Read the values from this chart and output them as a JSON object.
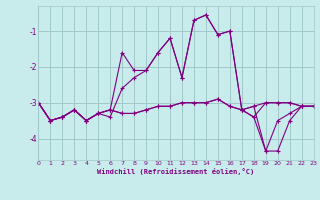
{
  "xlabel": "Windchill (Refroidissement éolien,°C)",
  "bg_color": "#c8ecec",
  "grid_color": "#a0c8c8",
  "line_color": "#800080",
  "xmin": 0,
  "xmax": 23,
  "ymin": -4.6,
  "ymax": -0.3,
  "yticks": [
    -4,
    -3,
    -2,
    -1
  ],
  "xticks": [
    0,
    1,
    2,
    3,
    4,
    5,
    6,
    7,
    8,
    9,
    10,
    11,
    12,
    13,
    14,
    15,
    16,
    17,
    18,
    19,
    20,
    21,
    22,
    23
  ],
  "series1_x": [
    0,
    1,
    2,
    3,
    4,
    5,
    6,
    7,
    8,
    9,
    10,
    11,
    12,
    13,
    14,
    15,
    16,
    17,
    18,
    19,
    20,
    21,
    22,
    23
  ],
  "series1_y": [
    -3.0,
    -3.5,
    -3.4,
    -3.2,
    -3.5,
    -3.3,
    -3.2,
    -3.3,
    -3.3,
    -3.2,
    -3.1,
    -3.1,
    -3.0,
    -3.0,
    -3.0,
    -2.9,
    -3.1,
    -3.2,
    -3.1,
    -3.0,
    -3.0,
    -3.0,
    -3.1,
    -3.1
  ],
  "series2_x": [
    0,
    1,
    2,
    3,
    4,
    5,
    6,
    7,
    8,
    9,
    10,
    11,
    12,
    13,
    14,
    15,
    16,
    17,
    18,
    19,
    20,
    21,
    22,
    23
  ],
  "series2_y": [
    -3.0,
    -3.5,
    -3.4,
    -3.2,
    -3.5,
    -3.3,
    -3.4,
    -2.6,
    -2.3,
    -2.1,
    -1.6,
    -1.2,
    -2.3,
    -0.7,
    -0.55,
    -1.1,
    -1.0,
    -3.2,
    -3.4,
    -4.35,
    -3.5,
    -3.3,
    -3.1,
    -3.1
  ],
  "series3_x": [
    0,
    1,
    2,
    3,
    4,
    5,
    6,
    7,
    8,
    9,
    10,
    11,
    12,
    13,
    14,
    15,
    16,
    17,
    18,
    19,
    20,
    21,
    22,
    23
  ],
  "series3_y": [
    -3.0,
    -3.5,
    -3.4,
    -3.2,
    -3.5,
    -3.3,
    -3.2,
    -3.3,
    -3.3,
    -3.2,
    -3.1,
    -3.1,
    -3.0,
    -3.0,
    -3.0,
    -2.9,
    -3.1,
    -3.2,
    -3.1,
    -4.35,
    -4.35,
    -3.5,
    -3.1,
    -3.1
  ],
  "series4_x": [
    0,
    1,
    2,
    3,
    4,
    5,
    6,
    7,
    8,
    9,
    10,
    11,
    12,
    13,
    14,
    15,
    16,
    17,
    18,
    19,
    20,
    21,
    22,
    23
  ],
  "series4_y": [
    -3.0,
    -3.5,
    -3.4,
    -3.2,
    -3.5,
    -3.3,
    -3.2,
    -1.6,
    -2.1,
    -2.1,
    -1.6,
    -1.2,
    -2.3,
    -0.7,
    -0.55,
    -1.1,
    -1.0,
    -3.2,
    -3.4,
    -3.0,
    -3.0,
    -3.0,
    -3.1,
    -3.1
  ]
}
